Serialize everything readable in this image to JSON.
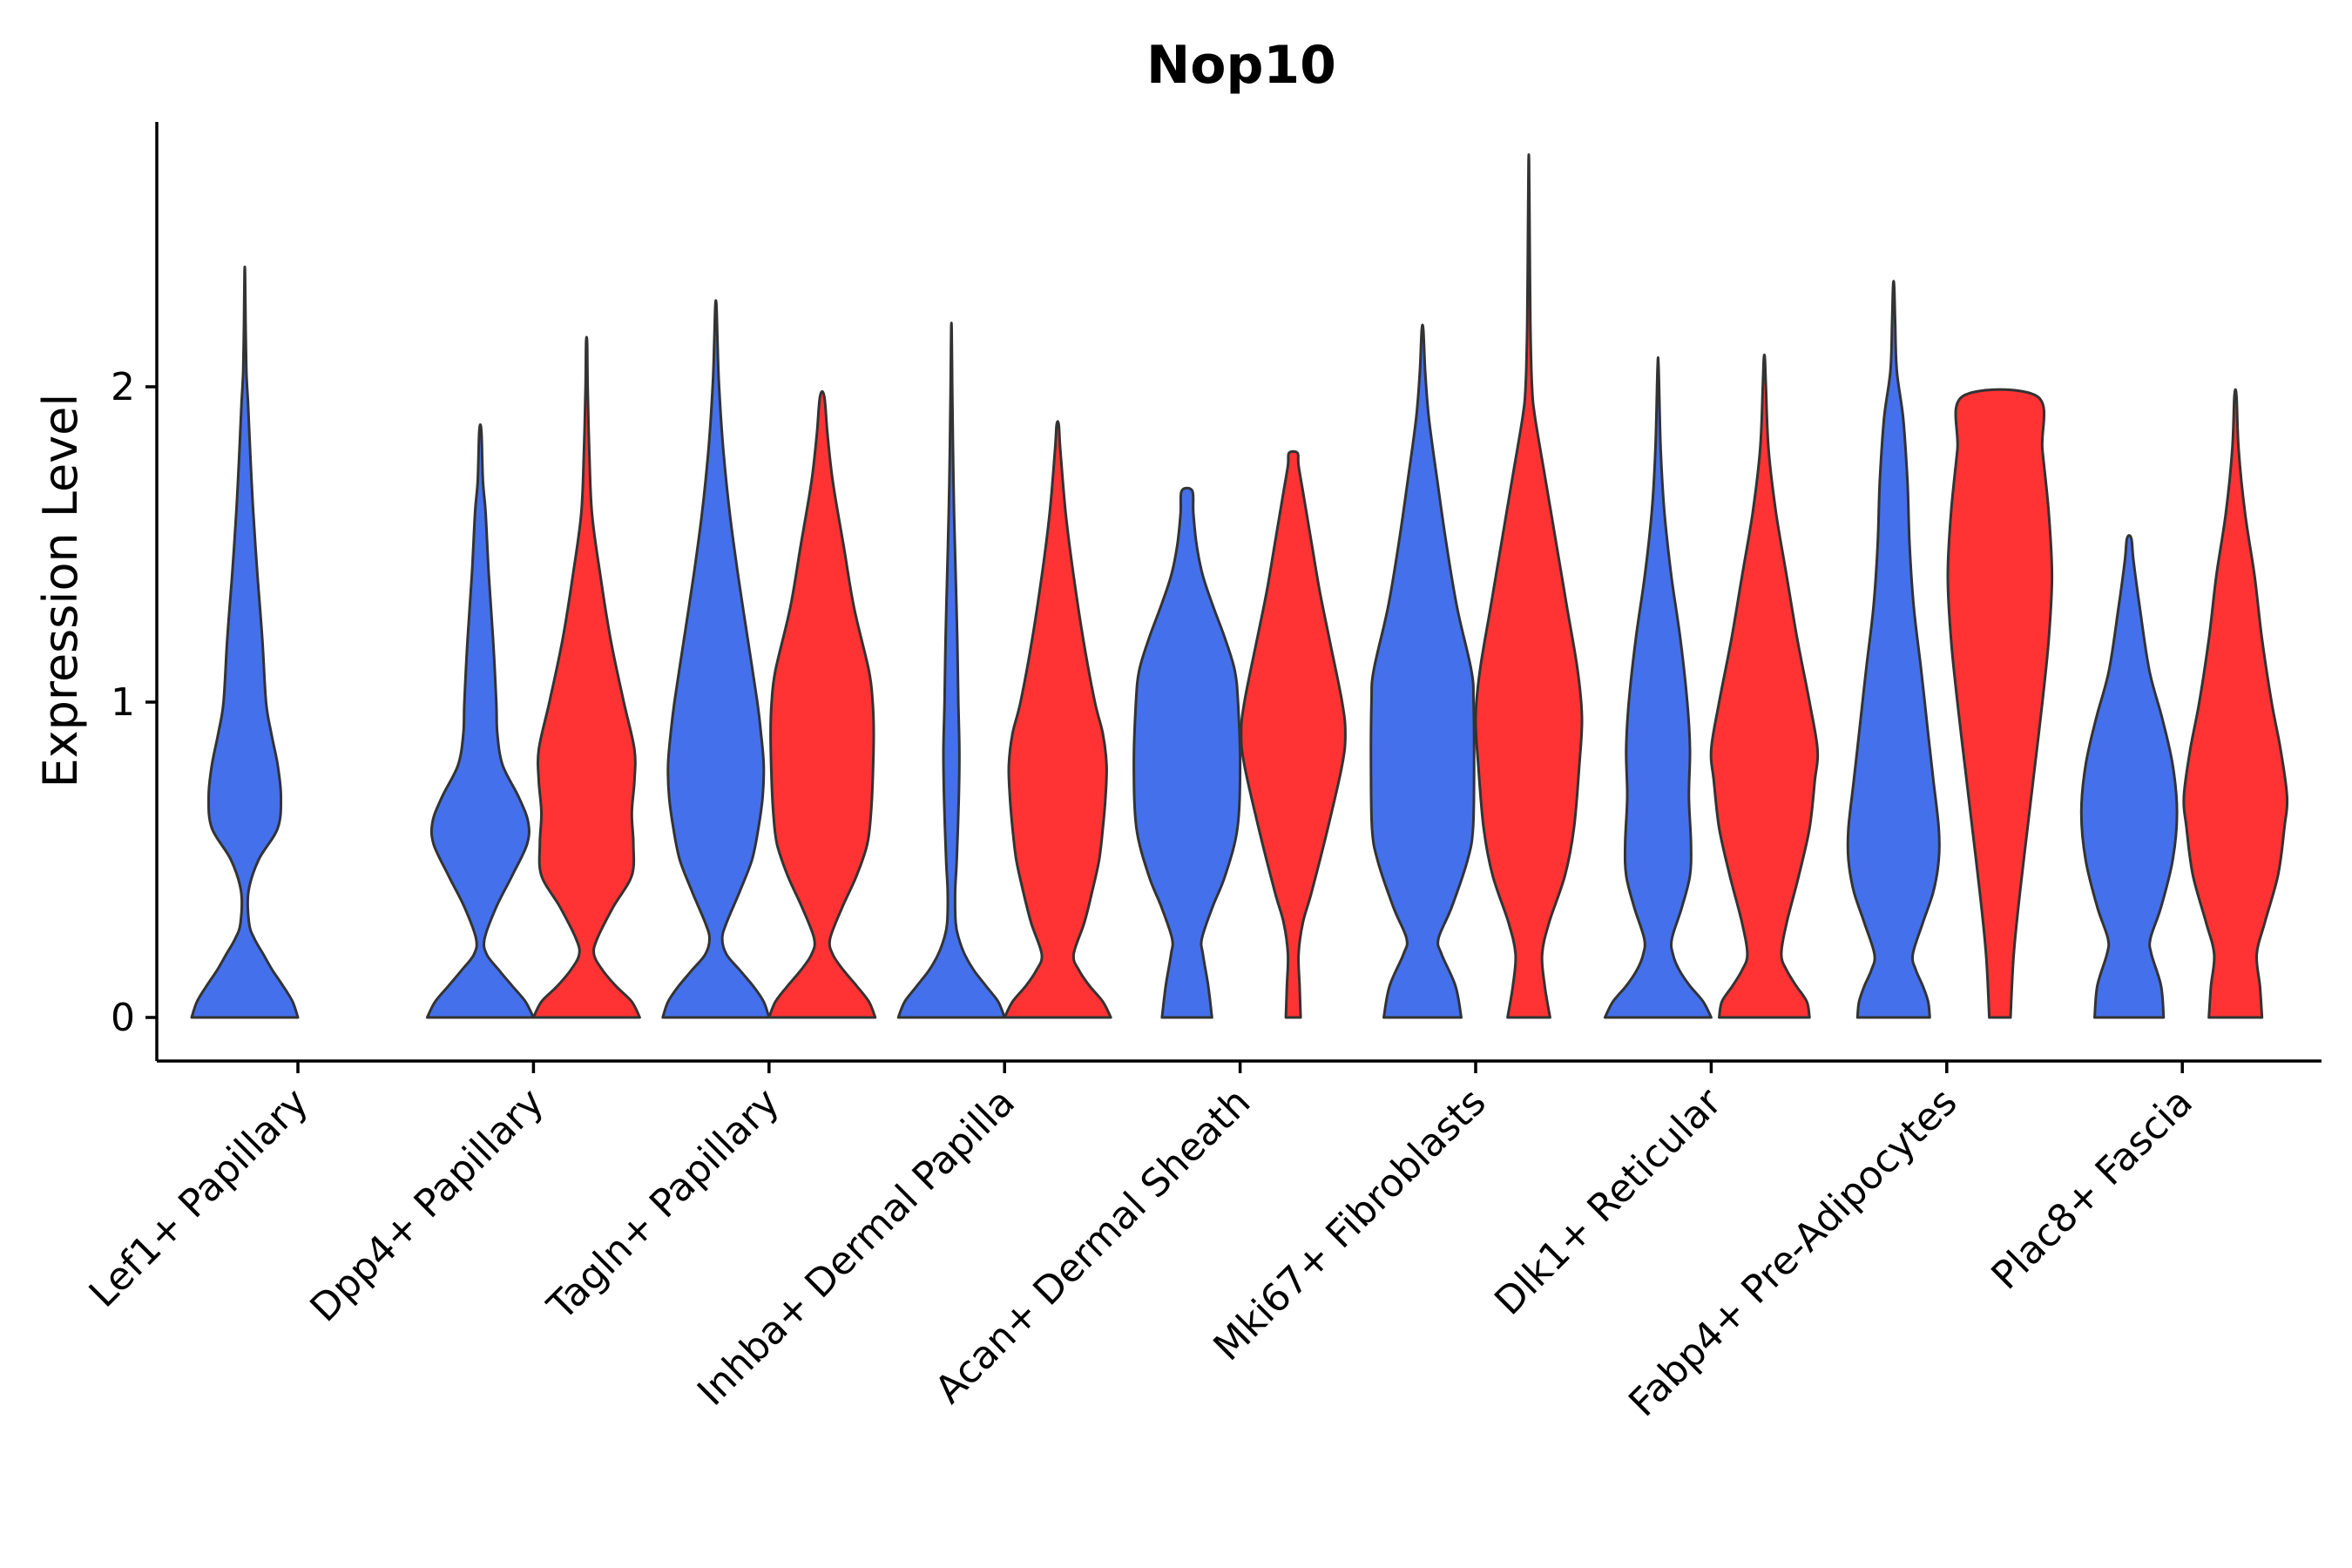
{
  "chart_data": {
    "type": "violin",
    "title": "Nop10",
    "xlabel": "",
    "ylabel": "Expression Level",
    "ylim": [
      -0.14,
      2.85
    ],
    "yticks": [
      0,
      1,
      2
    ],
    "grid": false,
    "legend": "none",
    "colors": {
      "group_a": "#4470EB",
      "group_b": "#FF3333",
      "outline": "#333333"
    },
    "categories": [
      "Lef1+ Papillary",
      "Dpp4+ Papillary",
      "Tagln+ Papillary",
      "Inhba+ Dermal Papilla",
      "Acan+ Dermal Sheath",
      "Mki67+ Fibroblasts",
      "Dlk1+ Reticular",
      "Fabp4+ Pre-Adipocytes",
      "Plac8+ Fascia"
    ],
    "violins": [
      {
        "category": 0,
        "group": "a",
        "max": 2.36,
        "shape": [
          [
            0,
            1.0
          ],
          [
            0.05,
            0.9
          ],
          [
            0.1,
            0.72
          ],
          [
            0.15,
            0.52
          ],
          [
            0.2,
            0.35
          ],
          [
            0.25,
            0.18
          ],
          [
            0.3,
            0.08
          ],
          [
            0.4,
            0.07
          ],
          [
            0.5,
            0.26
          ],
          [
            0.6,
            0.62
          ],
          [
            0.7,
            0.68
          ],
          [
            0.8,
            0.62
          ],
          [
            0.9,
            0.5
          ],
          [
            1.0,
            0.4
          ],
          [
            1.2,
            0.33
          ],
          [
            1.4,
            0.24
          ],
          [
            1.6,
            0.16
          ],
          [
            1.8,
            0.1
          ],
          [
            1.95,
            0.06
          ],
          [
            2.05,
            0.03
          ],
          [
            2.2,
            0.015
          ],
          [
            2.36,
            0.005
          ]
        ]
      },
      {
        "category": 1,
        "group": "a",
        "max": 1.86,
        "shape": [
          [
            0,
            1.0
          ],
          [
            0.05,
            0.85
          ],
          [
            0.1,
            0.6
          ],
          [
            0.15,
            0.35
          ],
          [
            0.2,
            0.12
          ],
          [
            0.25,
            0.08
          ],
          [
            0.35,
            0.3
          ],
          [
            0.45,
            0.6
          ],
          [
            0.55,
            0.88
          ],
          [
            0.62,
            0.9
          ],
          [
            0.7,
            0.72
          ],
          [
            0.8,
            0.42
          ],
          [
            0.9,
            0.32
          ],
          [
            1.0,
            0.3
          ],
          [
            1.2,
            0.24
          ],
          [
            1.4,
            0.16
          ],
          [
            1.6,
            0.1
          ],
          [
            1.7,
            0.05
          ],
          [
            1.86,
            0.02
          ]
        ]
      },
      {
        "category": 1,
        "group": "b",
        "max": 2.14,
        "shape": [
          [
            0,
            1.0
          ],
          [
            0.05,
            0.85
          ],
          [
            0.1,
            0.55
          ],
          [
            0.15,
            0.3
          ],
          [
            0.2,
            0.14
          ],
          [
            0.25,
            0.2
          ],
          [
            0.35,
            0.5
          ],
          [
            0.45,
            0.85
          ],
          [
            0.55,
            0.88
          ],
          [
            0.65,
            0.85
          ],
          [
            0.75,
            0.9
          ],
          [
            0.85,
            0.9
          ],
          [
            1.0,
            0.7
          ],
          [
            1.2,
            0.45
          ],
          [
            1.4,
            0.26
          ],
          [
            1.6,
            0.1
          ],
          [
            1.8,
            0.05
          ],
          [
            2.0,
            0.02
          ],
          [
            2.14,
            0.01
          ]
        ]
      },
      {
        "category": 2,
        "group": "a",
        "max": 2.26,
        "shape": [
          [
            0,
            1.0
          ],
          [
            0.05,
            0.9
          ],
          [
            0.1,
            0.7
          ],
          [
            0.15,
            0.45
          ],
          [
            0.2,
            0.2
          ],
          [
            0.25,
            0.12
          ],
          [
            0.3,
            0.2
          ],
          [
            0.4,
            0.45
          ],
          [
            0.5,
            0.68
          ],
          [
            0.6,
            0.8
          ],
          [
            0.7,
            0.88
          ],
          [
            0.8,
            0.9
          ],
          [
            0.9,
            0.85
          ],
          [
            1.0,
            0.78
          ],
          [
            1.2,
            0.6
          ],
          [
            1.4,
            0.42
          ],
          [
            1.6,
            0.26
          ],
          [
            1.8,
            0.14
          ],
          [
            2.0,
            0.06
          ],
          [
            2.15,
            0.03
          ],
          [
            2.26,
            0.01
          ]
        ]
      },
      {
        "category": 2,
        "group": "b",
        "max": 1.97,
        "shape": [
          [
            0,
            1.0
          ],
          [
            0.05,
            0.88
          ],
          [
            0.1,
            0.65
          ],
          [
            0.15,
            0.4
          ],
          [
            0.2,
            0.2
          ],
          [
            0.25,
            0.15
          ],
          [
            0.35,
            0.38
          ],
          [
            0.45,
            0.65
          ],
          [
            0.55,
            0.85
          ],
          [
            0.65,
            0.92
          ],
          [
            0.75,
            0.95
          ],
          [
            0.9,
            0.97
          ],
          [
            1.0,
            0.95
          ],
          [
            1.1,
            0.88
          ],
          [
            1.3,
            0.6
          ],
          [
            1.5,
            0.4
          ],
          [
            1.7,
            0.2
          ],
          [
            1.85,
            0.1
          ],
          [
            1.97,
            0.04
          ]
        ]
      },
      {
        "category": 3,
        "group": "a",
        "max": 2.18,
        "shape": [
          [
            0,
            1.0
          ],
          [
            0.05,
            0.88
          ],
          [
            0.1,
            0.65
          ],
          [
            0.15,
            0.42
          ],
          [
            0.2,
            0.25
          ],
          [
            0.25,
            0.14
          ],
          [
            0.3,
            0.08
          ],
          [
            0.4,
            0.07
          ],
          [
            0.5,
            0.1
          ],
          [
            0.7,
            0.14
          ],
          [
            0.85,
            0.15
          ],
          [
            1.0,
            0.13
          ],
          [
            1.2,
            0.11
          ],
          [
            1.4,
            0.08
          ],
          [
            1.6,
            0.05
          ],
          [
            1.8,
            0.03
          ],
          [
            2.0,
            0.015
          ],
          [
            2.18,
            0.005
          ]
        ]
      },
      {
        "category": 3,
        "group": "b",
        "max": 1.88,
        "shape": [
          [
            0,
            1.0
          ],
          [
            0.05,
            0.85
          ],
          [
            0.1,
            0.6
          ],
          [
            0.15,
            0.4
          ],
          [
            0.2,
            0.3
          ],
          [
            0.3,
            0.5
          ],
          [
            0.4,
            0.65
          ],
          [
            0.5,
            0.78
          ],
          [
            0.6,
            0.85
          ],
          [
            0.7,
            0.9
          ],
          [
            0.8,
            0.92
          ],
          [
            0.9,
            0.85
          ],
          [
            1.0,
            0.7
          ],
          [
            1.2,
            0.48
          ],
          [
            1.4,
            0.3
          ],
          [
            1.6,
            0.15
          ],
          [
            1.8,
            0.05
          ],
          [
            1.88,
            0.02
          ]
        ]
      },
      {
        "category": 4,
        "group": "a",
        "max": 1.67,
        "shape": [
          [
            0,
            0.47
          ],
          [
            0.1,
            0.4
          ],
          [
            0.2,
            0.3
          ],
          [
            0.25,
            0.28
          ],
          [
            0.35,
            0.48
          ],
          [
            0.45,
            0.72
          ],
          [
            0.6,
            0.95
          ],
          [
            0.8,
            1.0
          ],
          [
            1.0,
            0.96
          ],
          [
            1.1,
            0.9
          ],
          [
            1.2,
            0.72
          ],
          [
            1.3,
            0.5
          ],
          [
            1.4,
            0.3
          ],
          [
            1.5,
            0.18
          ],
          [
            1.6,
            0.12
          ],
          [
            1.67,
            0.1
          ]
        ]
      },
      {
        "category": 4,
        "group": "b",
        "max": 1.79,
        "shape": [
          [
            0,
            0.14
          ],
          [
            0.1,
            0.12
          ],
          [
            0.2,
            0.1
          ],
          [
            0.3,
            0.18
          ],
          [
            0.4,
            0.35
          ],
          [
            0.6,
            0.65
          ],
          [
            0.8,
            0.92
          ],
          [
            0.9,
            0.98
          ],
          [
            1.0,
            0.92
          ],
          [
            1.2,
            0.68
          ],
          [
            1.35,
            0.5
          ],
          [
            1.5,
            0.35
          ],
          [
            1.65,
            0.2
          ],
          [
            1.75,
            0.1
          ],
          [
            1.79,
            0.08
          ]
        ]
      },
      {
        "category": 5,
        "group": "a",
        "max": 2.18,
        "shape": [
          [
            0,
            0.73
          ],
          [
            0.1,
            0.62
          ],
          [
            0.2,
            0.36
          ],
          [
            0.25,
            0.3
          ],
          [
            0.35,
            0.55
          ],
          [
            0.5,
            0.85
          ],
          [
            0.6,
            0.95
          ],
          [
            0.8,
            0.97
          ],
          [
            1.0,
            0.96
          ],
          [
            1.1,
            0.92
          ],
          [
            1.3,
            0.65
          ],
          [
            1.5,
            0.45
          ],
          [
            1.7,
            0.28
          ],
          [
            1.9,
            0.12
          ],
          [
            2.05,
            0.05
          ],
          [
            2.18,
            0.015
          ]
        ]
      },
      {
        "category": 5,
        "group": "b",
        "max": 2.71,
        "shape": [
          [
            0,
            0.4
          ],
          [
            0.1,
            0.3
          ],
          [
            0.2,
            0.25
          ],
          [
            0.3,
            0.38
          ],
          [
            0.45,
            0.68
          ],
          [
            0.6,
            0.85
          ],
          [
            0.8,
            0.95
          ],
          [
            0.95,
            1.0
          ],
          [
            1.1,
            0.92
          ],
          [
            1.3,
            0.72
          ],
          [
            1.5,
            0.52
          ],
          [
            1.7,
            0.32
          ],
          [
            1.9,
            0.12
          ],
          [
            2.0,
            0.06
          ],
          [
            2.2,
            0.03
          ],
          [
            2.5,
            0.015
          ],
          [
            2.71,
            0.005
          ]
        ]
      },
      {
        "category": 6,
        "group": "a",
        "max": 2.06,
        "shape": [
          [
            0,
            1.0
          ],
          [
            0.05,
            0.85
          ],
          [
            0.1,
            0.6
          ],
          [
            0.15,
            0.4
          ],
          [
            0.2,
            0.28
          ],
          [
            0.25,
            0.26
          ],
          [
            0.35,
            0.45
          ],
          [
            0.45,
            0.6
          ],
          [
            0.55,
            0.62
          ],
          [
            0.7,
            0.58
          ],
          [
            0.85,
            0.6
          ],
          [
            1.0,
            0.55
          ],
          [
            1.2,
            0.42
          ],
          [
            1.4,
            0.25
          ],
          [
            1.6,
            0.12
          ],
          [
            1.8,
            0.05
          ],
          [
            2.06,
            0.01
          ]
        ]
      },
      {
        "category": 6,
        "group": "b",
        "max": 2.09,
        "shape": [
          [
            0,
            0.85
          ],
          [
            0.05,
            0.8
          ],
          [
            0.1,
            0.6
          ],
          [
            0.15,
            0.42
          ],
          [
            0.2,
            0.32
          ],
          [
            0.3,
            0.42
          ],
          [
            0.45,
            0.65
          ],
          [
            0.6,
            0.85
          ],
          [
            0.75,
            0.95
          ],
          [
            0.85,
            1.0
          ],
          [
            1.0,
            0.85
          ],
          [
            1.2,
            0.62
          ],
          [
            1.4,
            0.42
          ],
          [
            1.6,
            0.22
          ],
          [
            1.8,
            0.08
          ],
          [
            2.0,
            0.03
          ],
          [
            2.09,
            0.01
          ]
        ]
      },
      {
        "category": 7,
        "group": "a",
        "max": 2.32,
        "shape": [
          [
            0,
            0.68
          ],
          [
            0.05,
            0.65
          ],
          [
            0.1,
            0.55
          ],
          [
            0.15,
            0.42
          ],
          [
            0.2,
            0.36
          ],
          [
            0.3,
            0.55
          ],
          [
            0.4,
            0.75
          ],
          [
            0.5,
            0.85
          ],
          [
            0.6,
            0.85
          ],
          [
            0.75,
            0.75
          ],
          [
            0.9,
            0.65
          ],
          [
            1.1,
            0.52
          ],
          [
            1.3,
            0.38
          ],
          [
            1.5,
            0.3
          ],
          [
            1.7,
            0.26
          ],
          [
            1.9,
            0.18
          ],
          [
            2.05,
            0.06
          ],
          [
            2.2,
            0.03
          ],
          [
            2.32,
            0.01
          ]
        ]
      },
      {
        "category": 7,
        "group": "b",
        "max": 1.97,
        "shape": [
          [
            0,
            0.2
          ],
          [
            0.2,
            0.26
          ],
          [
            0.4,
            0.38
          ],
          [
            0.6,
            0.52
          ],
          [
            0.8,
            0.66
          ],
          [
            1.0,
            0.8
          ],
          [
            1.2,
            0.92
          ],
          [
            1.4,
            0.98
          ],
          [
            1.6,
            0.92
          ],
          [
            1.8,
            0.8
          ],
          [
            1.97,
            0.7
          ]
        ]
      },
      {
        "category": 8,
        "group": "a",
        "max": 1.52,
        "shape": [
          [
            0,
            0.65
          ],
          [
            0.1,
            0.6
          ],
          [
            0.2,
            0.42
          ],
          [
            0.25,
            0.4
          ],
          [
            0.35,
            0.6
          ],
          [
            0.5,
            0.82
          ],
          [
            0.65,
            0.9
          ],
          [
            0.8,
            0.82
          ],
          [
            0.95,
            0.62
          ],
          [
            1.1,
            0.38
          ],
          [
            1.3,
            0.2
          ],
          [
            1.45,
            0.08
          ],
          [
            1.52,
            0.04
          ]
        ]
      },
      {
        "category": 8,
        "group": "b",
        "max": 1.97,
        "shape": [
          [
            0,
            0.5
          ],
          [
            0.1,
            0.46
          ],
          [
            0.2,
            0.4
          ],
          [
            0.3,
            0.55
          ],
          [
            0.45,
            0.8
          ],
          [
            0.6,
            0.92
          ],
          [
            0.7,
            0.97
          ],
          [
            0.85,
            0.85
          ],
          [
            1.0,
            0.68
          ],
          [
            1.2,
            0.5
          ],
          [
            1.4,
            0.36
          ],
          [
            1.6,
            0.18
          ],
          [
            1.8,
            0.06
          ],
          [
            1.97,
            0.02
          ]
        ]
      }
    ]
  }
}
